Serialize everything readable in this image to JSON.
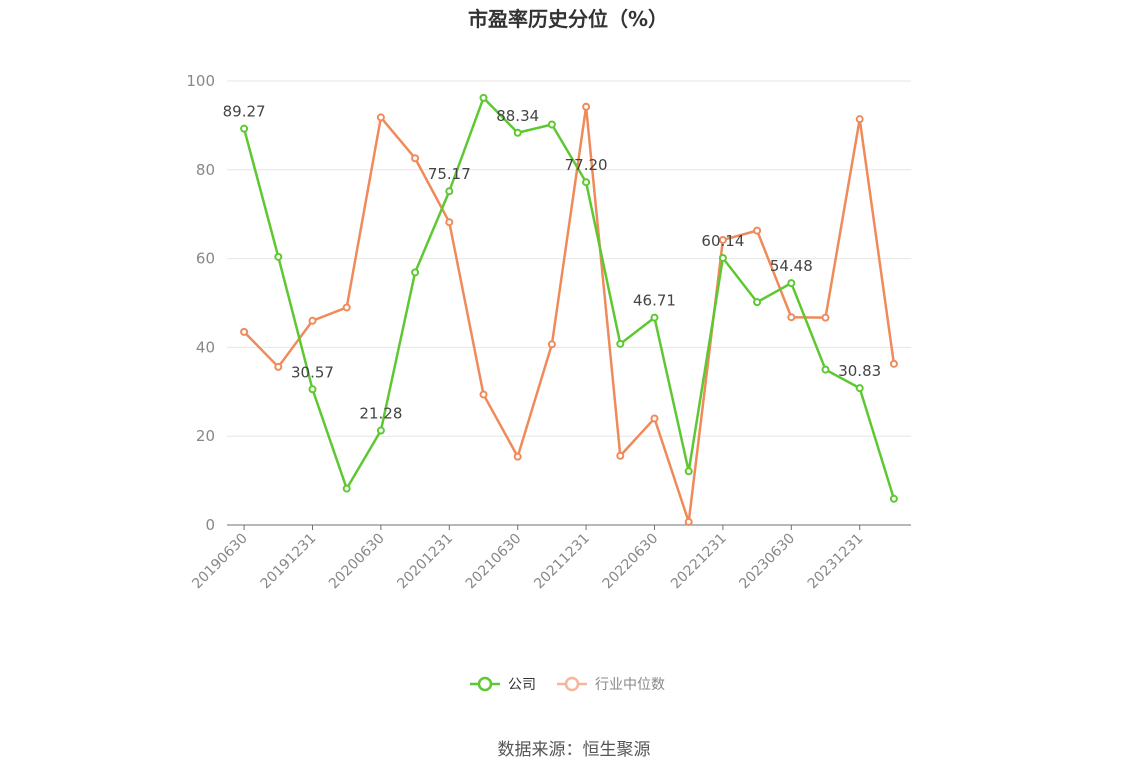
{
  "chart_data": {
    "type": "line",
    "title": "市盈率历史分位（%）",
    "x": [
      "20190630",
      "20190930",
      "20191231",
      "20200331",
      "20200630",
      "20200930",
      "20201231",
      "20210331",
      "20210630",
      "20210930",
      "20211231",
      "20220331",
      "20220630",
      "20220930",
      "20221231",
      "20230331",
      "20230630",
      "20230930",
      "20231231",
      "20240331"
    ],
    "x_tick_labels": [
      "20190630",
      "20191231",
      "20200630",
      "20201231",
      "20210630",
      "20211231",
      "20220630",
      "20221231",
      "20230630",
      "20231231"
    ],
    "ylim": [
      0,
      100
    ],
    "yticks": [
      0,
      20,
      40,
      60,
      80,
      100
    ],
    "grid": true,
    "legend_position": "bottom",
    "series": [
      {
        "name": "公司",
        "color": "#5ec832",
        "values": [
          89.27,
          60.4,
          30.57,
          8.2,
          21.28,
          56.9,
          75.17,
          96.2,
          88.34,
          90.2,
          77.2,
          40.8,
          46.71,
          12.1,
          60.14,
          50.2,
          54.48,
          35.0,
          30.83,
          5.9
        ],
        "labels": [
          "89.27",
          "",
          "30.57",
          "",
          "21.28",
          "",
          "75.17",
          "",
          "88.34",
          "",
          "77.20",
          "",
          "46.71",
          "",
          "60.14",
          "",
          "54.48",
          "",
          "30.83",
          ""
        ]
      },
      {
        "name": "行业中位数",
        "color": "#f08a5a",
        "values": [
          43.5,
          35.6,
          46.0,
          49.0,
          91.8,
          82.6,
          68.2,
          29.4,
          15.4,
          40.7,
          94.2,
          15.6,
          24.0,
          0.7,
          64.2,
          66.3,
          46.8,
          46.7,
          91.4,
          36.3
        ],
        "labels": []
      }
    ]
  },
  "source": "数据来源：恒生聚源"
}
